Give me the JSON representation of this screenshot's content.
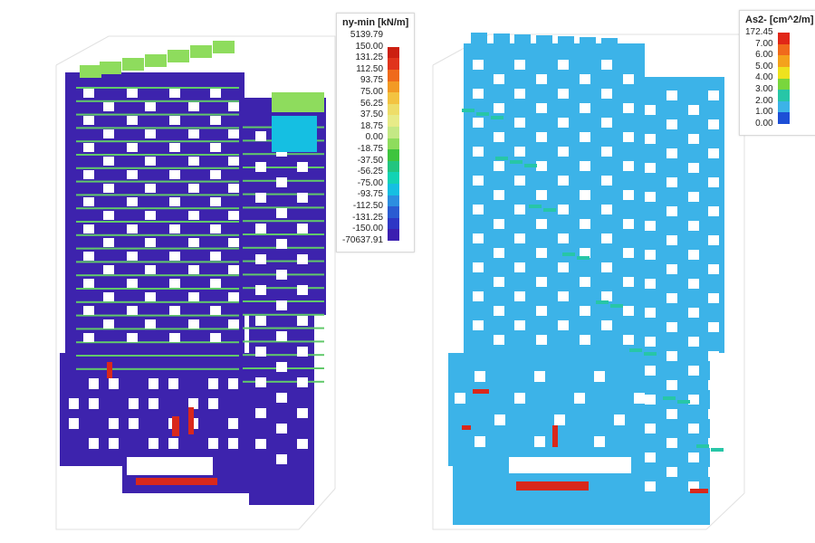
{
  "left_panel": {
    "legend": {
      "title": "ny-min [kN/m]",
      "max_label": "5139.79",
      "min_label": "-70637.91",
      "labels": [
        "150.00",
        "131.25",
        "112.50",
        "93.75",
        "75.00",
        "56.25",
        "37.50",
        "18.75",
        "0.00",
        "-18.75",
        "-37.50",
        "-56.25",
        "-75.00",
        "-93.75",
        "-112.50",
        "-131.25",
        "-150.00"
      ],
      "colors": [
        "#cc1f10",
        "#e0341c",
        "#ef6a1b",
        "#f29a25",
        "#f3c341",
        "#eedd69",
        "#e7eb88",
        "#c4e885",
        "#8edc5d",
        "#3ec43e",
        "#22c57f",
        "#12d3b4",
        "#15bfe2",
        "#2c8ee0",
        "#2a5bd2",
        "#2d36c5",
        "#3b1fb0"
      ]
    },
    "colors": {
      "structure": "#3d23ad",
      "slab": "#8edc5d",
      "opening": "#ffffff",
      "hot": "#d9281b"
    }
  },
  "right_panel": {
    "legend": {
      "title": "As2- [cm^2/m]",
      "labels": [
        "172.45",
        "7.00",
        "6.00",
        "5.00",
        "4.00",
        "3.00",
        "2.00",
        "1.00",
        "0.00"
      ],
      "colors": [
        "#e12717",
        "#f06a1c",
        "#f4a21c",
        "#eee21e",
        "#79d63d",
        "#27c6a7",
        "#3cb3e8",
        "#1d4fd6"
      ]
    },
    "colors": {
      "structure": "#3cb3e8",
      "accent": "#27c6a7",
      "opening": "#ffffff",
      "hot": "#d9281b"
    }
  }
}
